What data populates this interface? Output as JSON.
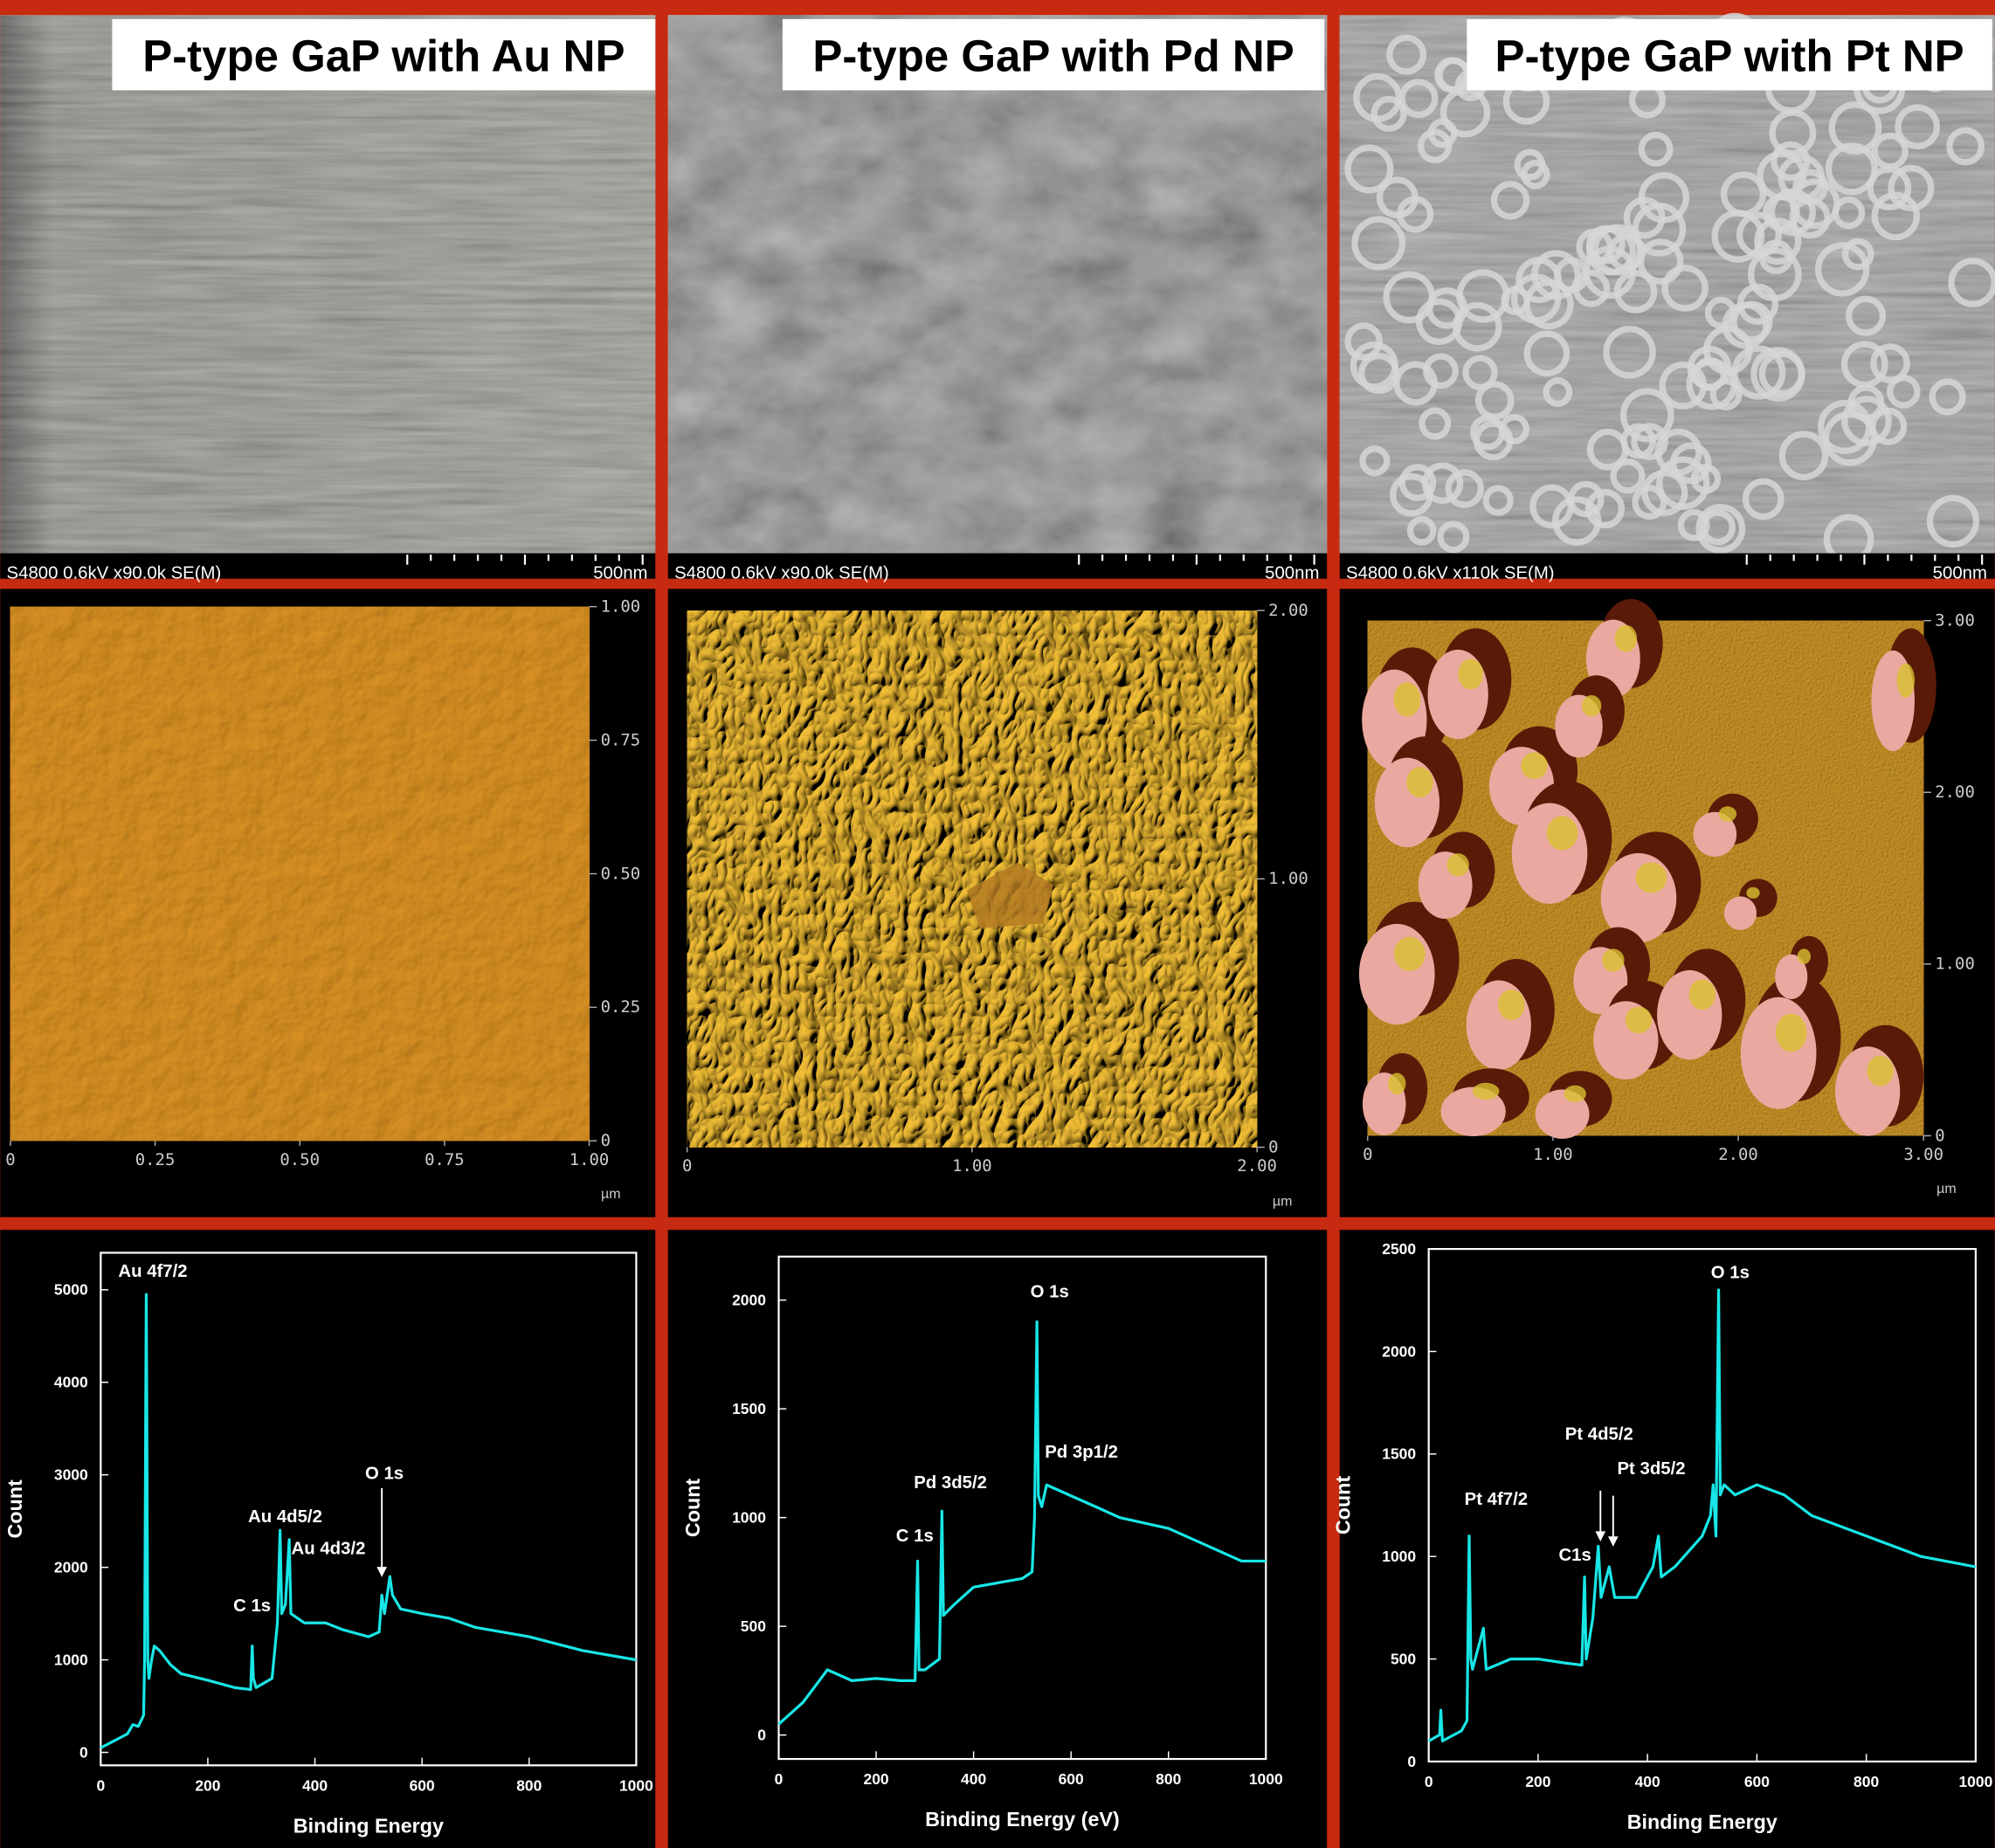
{
  "sem_panels": [
    {
      "title": "P-type GaP with Au NP",
      "footer": "S4800 0.6kV x90.0k SE(M)",
      "scale": "500nm"
    },
    {
      "title": "P-type GaP with Pd NP",
      "footer": "S4800 0.6kV x90.0k SE(M)",
      "scale": "500nm"
    },
    {
      "title": "P-type GaP with Pt NP",
      "footer": "S4800 0.6kV x110k SE(M)",
      "scale": "500nm"
    }
  ],
  "afm_panels": [
    {
      "xlim": [
        0,
        1
      ],
      "ylim": [
        0,
        1
      ],
      "unit": "µm",
      "xticks": [
        0,
        {
          "value": 0.25,
          "label": "0.25"
        },
        {
          "value": 0.5,
          "label": "0.50"
        },
        {
          "value": 0.75,
          "label": "0.75"
        },
        {
          "value": 1,
          "label": "1.00"
        }
      ],
      "yticks": [
        0,
        {
          "value": 0.25,
          "label": "0.25"
        },
        {
          "value": 0.5,
          "label": "0.50"
        },
        {
          "value": 0.75,
          "label": "0.75"
        },
        {
          "value": 1,
          "label": "1.00"
        }
      ]
    },
    {
      "xlim": [
        0,
        2
      ],
      "ylim": [
        0,
        2
      ],
      "unit": "µm",
      "xticks": [
        0,
        {
          "value": 1,
          "label": "1.00"
        },
        {
          "value": 2,
          "label": "2.00"
        }
      ],
      "yticks": [
        0,
        {
          "value": 1,
          "label": "1.00"
        },
        {
          "value": 2,
          "label": "2.00"
        }
      ]
    },
    {
      "xlim": [
        0,
        3
      ],
      "ylim": [
        0,
        3
      ],
      "unit": "µm",
      "xticks": [
        0,
        {
          "value": 1,
          "label": "1.00"
        },
        {
          "value": 2,
          "label": "2.00"
        },
        {
          "value": 3,
          "label": "3.00"
        }
      ],
      "yticks": [
        0,
        {
          "value": 1,
          "label": "1.00"
        },
        {
          "value": 2,
          "label": "2.00"
        },
        {
          "value": 3,
          "label": "3.00"
        }
      ]
    }
  ],
  "chart_data": [
    {
      "type": "line",
      "xlabel": "Binding Energy",
      "ylabel": "Count",
      "color": "#19e6e6",
      "xlim": [
        0,
        1000
      ],
      "ylim": [
        -140,
        5400
      ],
      "xticks": [
        0,
        200,
        400,
        600,
        800,
        1000
      ],
      "yticks": [
        0,
        1000,
        2000,
        3000,
        4000,
        5000
      ],
      "x": [
        0,
        50,
        60,
        70,
        80,
        82,
        84,
        85,
        86,
        88,
        90,
        95,
        100,
        110,
        130,
        150,
        200,
        250,
        280,
        283,
        285,
        290,
        320,
        330,
        335,
        338,
        345,
        352,
        355,
        380,
        420,
        450,
        500,
        520,
        525,
        530,
        540,
        545,
        560,
        600,
        650,
        700,
        800,
        900,
        1000
      ],
      "values": [
        50,
        200,
        300,
        280,
        400,
        1000,
        3800,
        4950,
        3800,
        1000,
        800,
        1000,
        1150,
        1100,
        950,
        850,
        780,
        700,
        680,
        1150,
        800,
        700,
        800,
        1400,
        2400,
        1500,
        1600,
        2300,
        1500,
        1400,
        1400,
        1330,
        1250,
        1300,
        1700,
        1500,
        1900,
        1700,
        1550,
        1500,
        1450,
        1350,
        1250,
        1100,
        1000
      ],
      "annotations": [
        "Au 4f7/2",
        "Au 4d5/2",
        "Au 4d3/2",
        "C 1s",
        "O 1s"
      ]
    },
    {
      "type": "line",
      "xlabel": "Binding Energy (eV)",
      "ylabel": "Count",
      "color": "#19e6e6",
      "xlim": [
        0,
        1000
      ],
      "ylim": [
        -110,
        2200
      ],
      "xticks": [
        0,
        200,
        400,
        600,
        800,
        1000
      ],
      "yticks": [
        0,
        500,
        1000,
        1500,
        2000
      ],
      "x": [
        0,
        50,
        100,
        150,
        200,
        250,
        280,
        285,
        288,
        300,
        330,
        335,
        338,
        360,
        400,
        450,
        500,
        520,
        525,
        530,
        533,
        540,
        550,
        600,
        650,
        700,
        800,
        900,
        950,
        1000
      ],
      "values": [
        50,
        150,
        300,
        250,
        260,
        250,
        250,
        800,
        300,
        300,
        350,
        1030,
        550,
        600,
        680,
        700,
        720,
        750,
        1000,
        1900,
        1100,
        1050,
        1150,
        1100,
        1050,
        1000,
        950,
        850,
        800,
        800
      ],
      "annotations": [
        "O 1s",
        "Pd 3p1/2",
        "Pd 3d5/2",
        "C 1s"
      ]
    },
    {
      "type": "line",
      "xlabel": "Binding Energy",
      "ylabel": "Count",
      "color": "#19e6e6",
      "xlim": [
        0,
        1000
      ],
      "ylim": [
        0,
        2500
      ],
      "xticks": [
        0,
        200,
        400,
        600,
        800,
        1000
      ],
      "yticks": [
        0,
        500,
        1000,
        1500,
        2000,
        2500
      ],
      "x": [
        0,
        20,
        22,
        25,
        60,
        70,
        74,
        77,
        80,
        100,
        105,
        150,
        200,
        250,
        280,
        285,
        288,
        300,
        310,
        315,
        330,
        340,
        380,
        400,
        410,
        420,
        425,
        450,
        500,
        515,
        520,
        525,
        530,
        533,
        540,
        560,
        600,
        650,
        700,
        800,
        900,
        1000
      ],
      "values": [
        100,
        130,
        250,
        100,
        150,
        200,
        1100,
        500,
        450,
        650,
        450,
        500,
        500,
        480,
        470,
        900,
        500,
        700,
        1050,
        800,
        950,
        800,
        800,
        900,
        950,
        1100,
        900,
        950,
        1100,
        1200,
        1350,
        1100,
        2300,
        1300,
        1350,
        1300,
        1350,
        1300,
        1200,
        1100,
        1000,
        950
      ],
      "annotations": [
        "O 1s",
        "Pt 4d5/2",
        "Pt 3d5/2",
        "Pt 4f7/2",
        "C1s"
      ]
    }
  ]
}
